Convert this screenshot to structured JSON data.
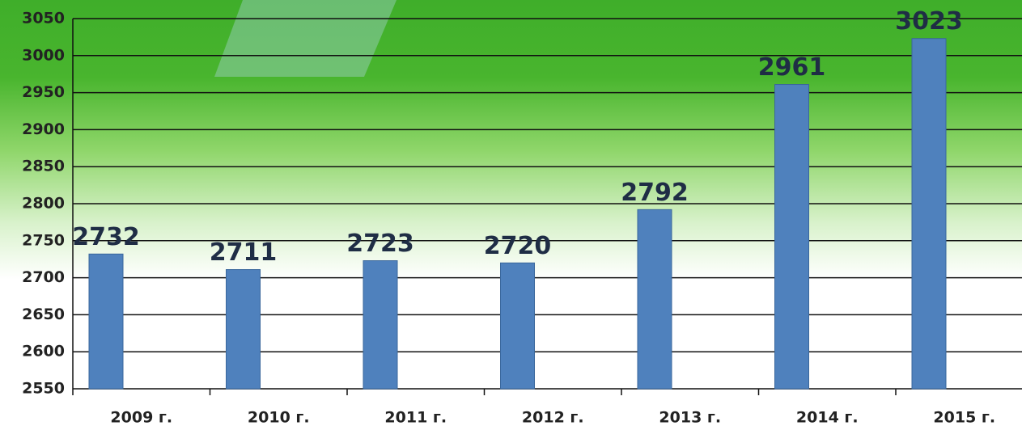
{
  "chart_data": {
    "type": "bar",
    "categories": [
      "2009 г.",
      "2010 г.",
      "2011 г.",
      "2012 г.",
      "2013 г.",
      "2014 г.",
      "2015 г."
    ],
    "values": [
      2732,
      2711,
      2723,
      2720,
      2792,
      2961,
      3023
    ],
    "color": "#4f81bd",
    "ylim": [
      2550,
      3050
    ],
    "yticks": [
      2550,
      2600,
      2650,
      2700,
      2750,
      2800,
      2850,
      2900,
      2950,
      3000,
      3050
    ],
    "grid": true
  }
}
